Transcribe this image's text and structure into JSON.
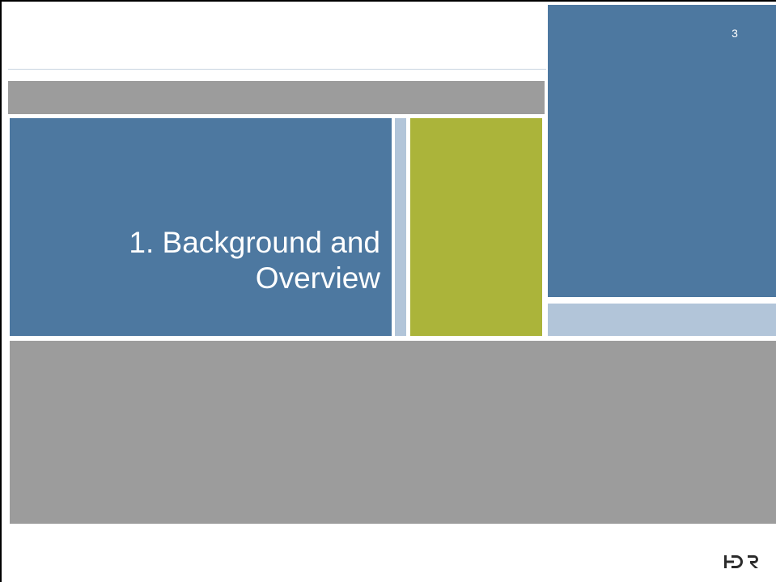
{
  "slide": {
    "number": "3",
    "title_line1": "1. Background and",
    "title_line2": "Overview"
  },
  "logo": {
    "text": "HDR",
    "icon": "hdr-logo"
  },
  "colors": {
    "blue": "#4d78a0",
    "light_blue": "#b2c5d9",
    "green": "#abb43a",
    "gray": "#9c9c9c"
  }
}
